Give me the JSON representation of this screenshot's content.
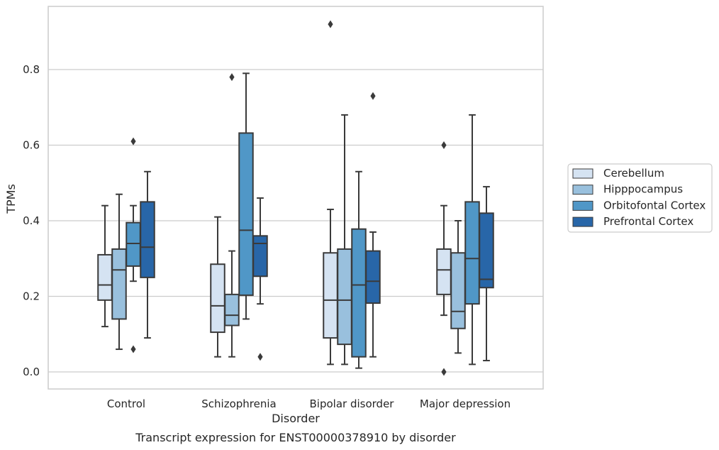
{
  "chart_data": {
    "type": "box",
    "xlabel": "Disorder",
    "ylabel": "TPMs",
    "caption": "Transcript expression for ENST00000378910 by disorder",
    "ylim": [
      -0.045,
      0.97
    ],
    "yticks": [
      0.0,
      0.2,
      0.4,
      0.6,
      0.8
    ],
    "ytick_labels": [
      "0.0",
      "0.2",
      "0.4",
      "0.6",
      "0.8"
    ],
    "grid": "horizontal",
    "legend_position": "right",
    "categories": [
      "Control",
      "Schizophrenia",
      "Bipolar disorder",
      "Major depression"
    ],
    "series": [
      {
        "name": "Cerebellum",
        "color": "#d5e3f2",
        "boxes": [
          {
            "whisker_low": 0.12,
            "q1": 0.19,
            "median": 0.23,
            "q3": 0.31,
            "whisker_high": 0.44,
            "outliers": []
          },
          {
            "whisker_low": 0.04,
            "q1": 0.105,
            "median": 0.175,
            "q3": 0.285,
            "whisker_high": 0.41,
            "outliers": []
          },
          {
            "whisker_low": 0.02,
            "q1": 0.09,
            "median": 0.19,
            "q3": 0.315,
            "whisker_high": 0.43,
            "outliers": [
              0.92
            ]
          },
          {
            "whisker_low": 0.15,
            "q1": 0.205,
            "median": 0.27,
            "q3": 0.325,
            "whisker_high": 0.44,
            "outliers": [
              0.6,
              0.0
            ]
          }
        ]
      },
      {
        "name": "Hipppocampus",
        "color": "#99c0dd",
        "boxes": [
          {
            "whisker_low": 0.06,
            "q1": 0.14,
            "median": 0.27,
            "q3": 0.325,
            "whisker_high": 0.47,
            "outliers": []
          },
          {
            "whisker_low": 0.04,
            "q1": 0.123,
            "median": 0.15,
            "q3": 0.205,
            "whisker_high": 0.32,
            "outliers": [
              0.78
            ]
          },
          {
            "whisker_low": 0.02,
            "q1": 0.073,
            "median": 0.19,
            "q3": 0.325,
            "whisker_high": 0.68,
            "outliers": []
          },
          {
            "whisker_low": 0.05,
            "q1": 0.115,
            "median": 0.16,
            "q3": 0.315,
            "whisker_high": 0.4,
            "outliers": []
          }
        ]
      },
      {
        "name": "Orbitofontal Cortex",
        "color": "#5097c7",
        "boxes": [
          {
            "whisker_low": 0.24,
            "q1": 0.28,
            "median": 0.34,
            "q3": 0.395,
            "whisker_high": 0.44,
            "outliers": [
              0.61,
              0.06
            ]
          },
          {
            "whisker_low": 0.14,
            "q1": 0.203,
            "median": 0.375,
            "q3": 0.632,
            "whisker_high": 0.79,
            "outliers": []
          },
          {
            "whisker_low": 0.01,
            "q1": 0.04,
            "median": 0.23,
            "q3": 0.378,
            "whisker_high": 0.53,
            "outliers": []
          },
          {
            "whisker_low": 0.02,
            "q1": 0.18,
            "median": 0.3,
            "q3": 0.45,
            "whisker_high": 0.68,
            "outliers": []
          }
        ]
      },
      {
        "name": "Prefrontal Cortex",
        "color": "#2866a8",
        "boxes": [
          {
            "whisker_low": 0.09,
            "q1": 0.25,
            "median": 0.33,
            "q3": 0.45,
            "whisker_high": 0.53,
            "outliers": []
          },
          {
            "whisker_low": 0.18,
            "q1": 0.253,
            "median": 0.34,
            "q3": 0.36,
            "whisker_high": 0.46,
            "outliers": [
              0.04
            ]
          },
          {
            "whisker_low": 0.04,
            "q1": 0.182,
            "median": 0.24,
            "q3": 0.32,
            "whisker_high": 0.37,
            "outliers": [
              0.73
            ]
          },
          {
            "whisker_low": 0.03,
            "q1": 0.223,
            "median": 0.245,
            "q3": 0.42,
            "whisker_high": 0.49,
            "outliers": []
          }
        ]
      }
    ]
  }
}
